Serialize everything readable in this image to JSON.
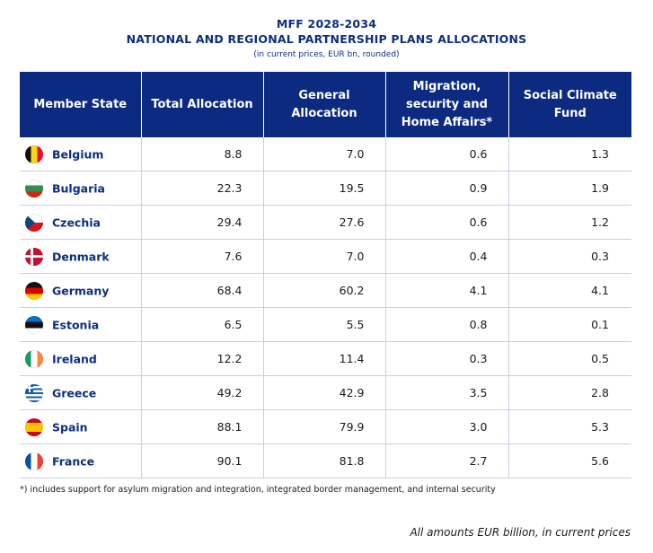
{
  "title": {
    "line1": "MFF 2028-2034",
    "line2": "NATIONAL AND REGIONAL PARTNERSHIP PLANS ALLOCATIONS",
    "subtitle": "(in current prices, EUR bn, rounded)"
  },
  "table": {
    "headers": [
      "Member State",
      "Total Allocation",
      "General Allocation",
      "Migration, security and Home Affairs*",
      "Social Climate Fund"
    ],
    "rows": [
      {
        "state": "Belgium",
        "flag": "belgium-flag-icon",
        "total": "8.8",
        "general": "7.0",
        "migration": "0.6",
        "climate": "1.3"
      },
      {
        "state": "Bulgaria",
        "flag": "bulgaria-flag-icon",
        "total": "22.3",
        "general": "19.5",
        "migration": "0.9",
        "climate": "1.9"
      },
      {
        "state": "Czechia",
        "flag": "czechia-flag-icon",
        "total": "29.4",
        "general": "27.6",
        "migration": "0.6",
        "climate": "1.2"
      },
      {
        "state": "Denmark",
        "flag": "denmark-flag-icon",
        "total": "7.6",
        "general": "7.0",
        "migration": "0.4",
        "climate": "0.3"
      },
      {
        "state": "Germany",
        "flag": "germany-flag-icon",
        "total": "68.4",
        "general": "60.2",
        "migration": "4.1",
        "climate": "4.1"
      },
      {
        "state": "Estonia",
        "flag": "estonia-flag-icon",
        "total": "6.5",
        "general": "5.5",
        "migration": "0.8",
        "climate": "0.1"
      },
      {
        "state": "Ireland",
        "flag": "ireland-flag-icon",
        "total": "12.2",
        "general": "11.4",
        "migration": "0.3",
        "climate": "0.5"
      },
      {
        "state": "Greece",
        "flag": "greece-flag-icon",
        "total": "49.2",
        "general": "42.9",
        "migration": "3.5",
        "climate": "2.8"
      },
      {
        "state": "Spain",
        "flag": "spain-flag-icon",
        "total": "88.1",
        "general": "79.9",
        "migration": "3.0",
        "climate": "5.3"
      },
      {
        "state": "France",
        "flag": "france-flag-icon",
        "total": "90.1",
        "general": "81.8",
        "migration": "2.7",
        "climate": "5.6"
      }
    ]
  },
  "footnote": "*) includes support for asylum migration and integration, integrated border management, and internal security",
  "closing_note": "All amounts EUR billion, in current prices",
  "colors": {
    "header_bg": "#0c2a80",
    "title_text": "#0d2e80"
  }
}
